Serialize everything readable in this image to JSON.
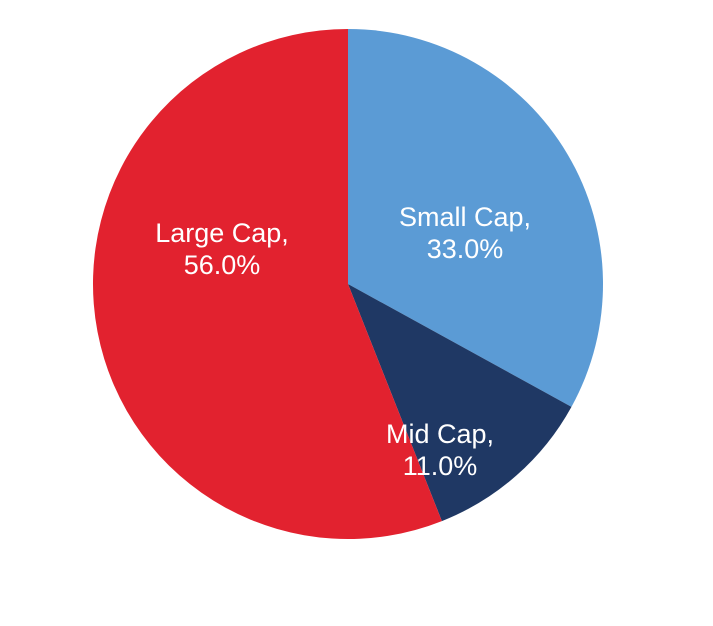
{
  "chart_data": {
    "type": "pie",
    "categories": [
      "Small Cap",
      "Mid Cap",
      "Large Cap"
    ],
    "values": [
      33.0,
      11.0,
      56.0
    ],
    "value_labels": [
      "33.0%",
      "11.0%",
      "56.0%"
    ],
    "colors": [
      "#5b9bd5",
      "#1f3864",
      "#e2222f"
    ],
    "start_angle_deg": 0,
    "direction": "clockwise",
    "title": "",
    "legend": "none"
  }
}
